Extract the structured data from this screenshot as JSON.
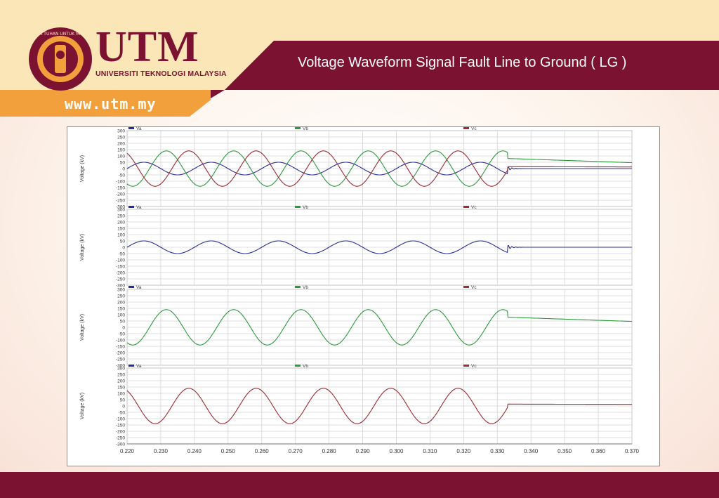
{
  "header": {
    "title": "Voltage Waveform  Signal Fault Line to Ground ( LG )",
    "logo_text": "UTM",
    "logo_subtitle": "UNIVERSITI TEKNOLOGI MALAYSIA",
    "website": "www.utm.my"
  },
  "colors": {
    "maroon": "#7b1232",
    "cream": "#fbe6b8",
    "orange": "#f2a03c",
    "va": "#2a2f8f",
    "vb": "#2e9a3e",
    "vc": "#9b2c34"
  },
  "chart_data": [
    {
      "type": "line",
      "ylabel": "Voltage (kV)",
      "ylim": [
        -300,
        300
      ],
      "yticks": [
        "300",
        "250",
        "200",
        "150",
        "100",
        "50",
        "0",
        "-50",
        "-100",
        "-150",
        "-200",
        "-250",
        "-300"
      ],
      "legend": [
        "Va",
        "Vb",
        "Vc"
      ],
      "fault_time": 0.333,
      "series": [
        {
          "name": "Va",
          "amplitude": 50,
          "phase_deg": 0,
          "post_fault": "zero"
        },
        {
          "name": "Vb",
          "amplitude": 140,
          "phase_deg": -120,
          "post_fault": "decay"
        },
        {
          "name": "Vc",
          "amplitude": 140,
          "phase_deg": 120,
          "post_fault": "small"
        }
      ]
    },
    {
      "type": "line",
      "ylabel": "Voltage (kV)",
      "ylim": [
        -300,
        300
      ],
      "yticks": [
        "300",
        "250",
        "200",
        "150",
        "100",
        "50",
        "0",
        "-50",
        "-100",
        "-150",
        "-200",
        "-250",
        "-300"
      ],
      "legend": [
        "Va",
        "Vb",
        "Vc"
      ],
      "series": [
        {
          "name": "Va",
          "amplitude": 50,
          "phase_deg": 0,
          "post_fault": "zero"
        }
      ]
    },
    {
      "type": "line",
      "ylabel": "Voltage (kV)",
      "ylim": [
        -300,
        300
      ],
      "yticks": [
        "300",
        "250",
        "200",
        "150",
        "100",
        "50",
        "0",
        "-50",
        "-100",
        "-150",
        "-200",
        "-250",
        "-300"
      ],
      "legend": [
        "Va",
        "Vb",
        "Vc"
      ],
      "series": [
        {
          "name": "Vb",
          "amplitude": 140,
          "phase_deg": -120,
          "post_fault": "decay"
        }
      ]
    },
    {
      "type": "line",
      "ylabel": "Voltage (kV)",
      "ylim": [
        -300,
        300
      ],
      "yticks": [
        "300",
        "250",
        "200",
        "150",
        "100",
        "50",
        "0",
        "-50",
        "-100",
        "-150",
        "-200",
        "-250",
        "-300"
      ],
      "legend": [
        "Va",
        "Vb",
        "Vc"
      ],
      "series": [
        {
          "name": "Vc",
          "amplitude": 140,
          "phase_deg": 120,
          "post_fault": "small"
        }
      ],
      "xlim": [
        0.22,
        0.37
      ],
      "xticks": [
        "0.220",
        "0.230",
        "0.240",
        "0.250",
        "0.260",
        "0.270",
        "0.280",
        "0.290",
        "0.300",
        "0.310",
        "0.320",
        "0.330",
        "0.340",
        "0.350",
        "0.360",
        "0.370"
      ]
    }
  ]
}
